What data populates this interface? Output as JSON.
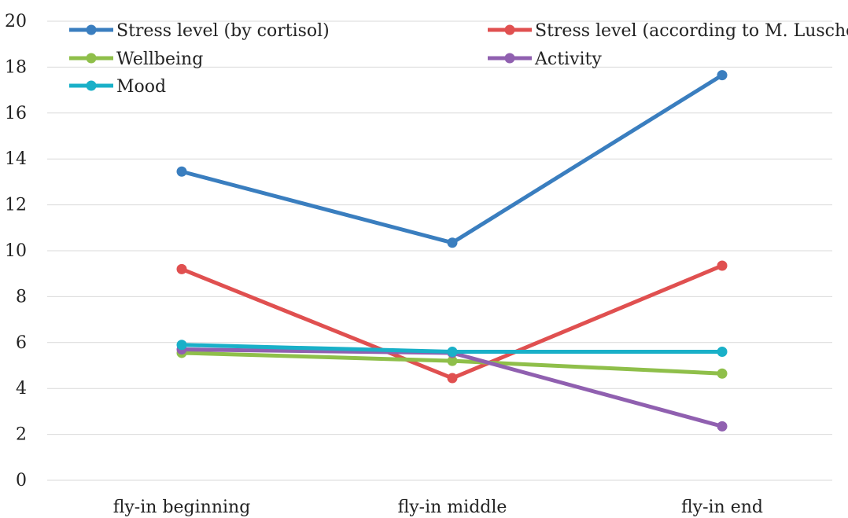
{
  "chart_data": {
    "type": "line",
    "title": "",
    "xlabel": "",
    "ylabel": "",
    "categories": [
      "fly-in beginning",
      "fly-in middle",
      "fly-in end"
    ],
    "ylim": [
      0,
      20
    ],
    "yticks": [
      0,
      2,
      4,
      6,
      8,
      10,
      12,
      14,
      16,
      18,
      20
    ],
    "grid": true,
    "legend": {
      "placement": "top"
    },
    "series": [
      {
        "name": "Stress level (by cortisol)",
        "color": "#3a7ebf",
        "values": [
          13.45,
          10.35,
          17.65
        ]
      },
      {
        "name": "Stress level (according to M. Luscher)",
        "color": "#e05050",
        "values": [
          9.2,
          4.45,
          9.35
        ]
      },
      {
        "name": "Wellbeing",
        "color": "#8fbf4a",
        "values": [
          5.55,
          5.2,
          4.65
        ]
      },
      {
        "name": "Activity",
        "color": "#9060b0",
        "values": [
          5.7,
          5.55,
          2.35
        ]
      },
      {
        "name": "Mood",
        "color": "#19b0c8",
        "values": [
          5.9,
          5.6,
          5.6
        ]
      }
    ]
  }
}
